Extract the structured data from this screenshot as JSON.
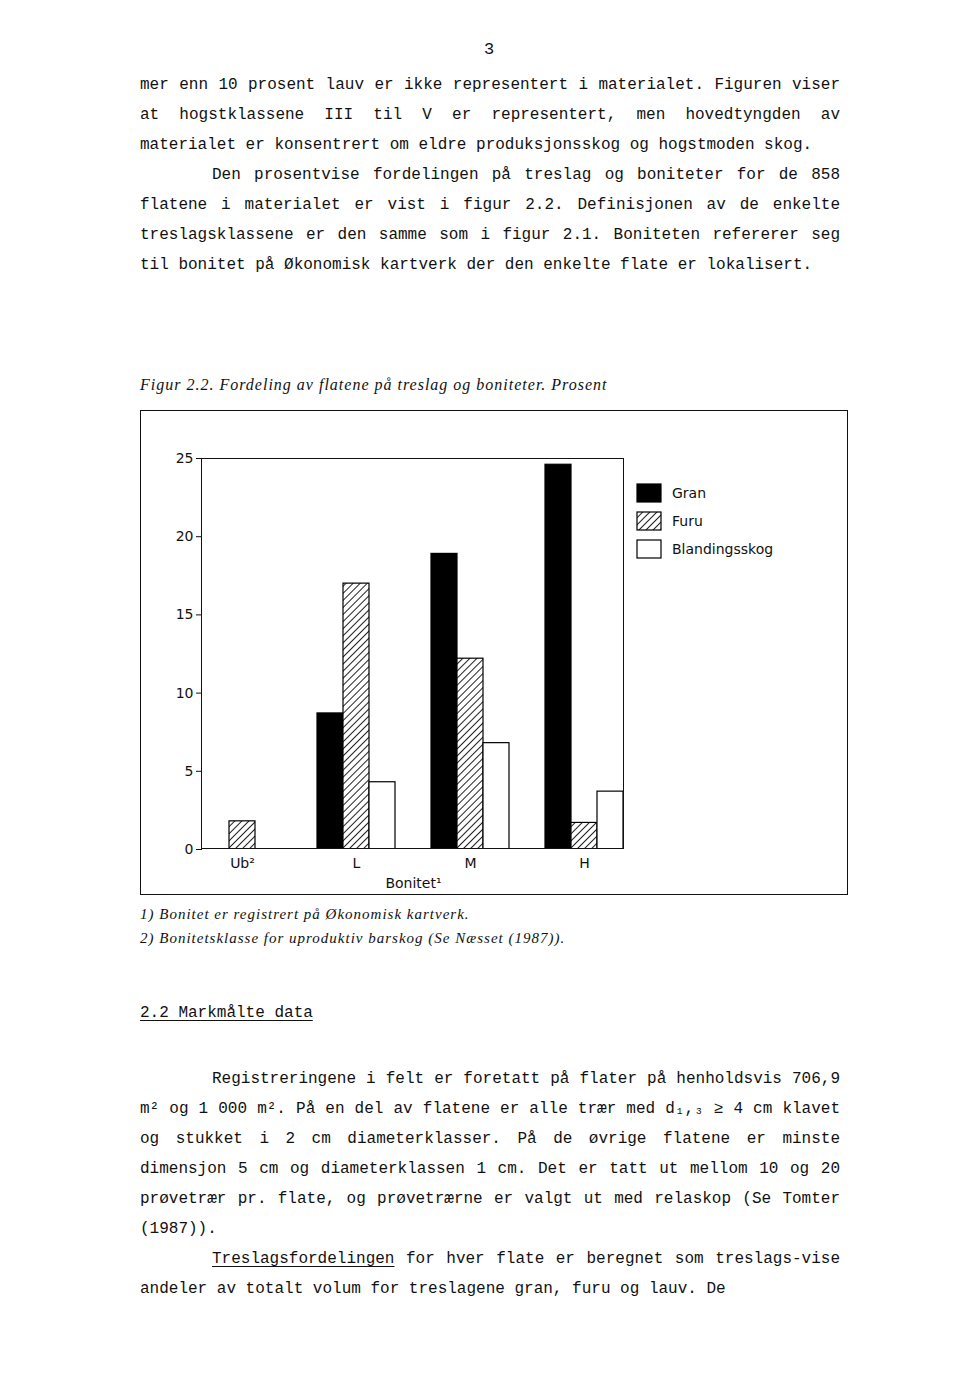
{
  "page_number": "3",
  "paragraphs_top": [
    "mer enn 10 prosent lauv er ikke representert i materialet. Figuren viser at hogstklassene III til V er representert, men hovedtyngden av materialet er konsentrert om eldre produksjonsskog og hogstmoden skog.",
    "Den prosentvise fordelingen på treslag og boniteter for de 858 flatene i materialet er vist i figur 2.2. Definisjonen av de enkelte treslagsklassene er den samme som i figur 2.1. Boniteten refererer seg til bonitet på Økonomisk kartverk der den enkelte flate er lokalisert."
  ],
  "figure_caption": "Figur 2.2. Fordeling av flatene på treslag og boniteter. Prosent",
  "chart_data": {
    "type": "bar",
    "xlabel": "Bonitet¹",
    "categories": [
      "Ub²",
      "L",
      "M",
      "H"
    ],
    "series": [
      {
        "name": "Gran",
        "color": "#000000",
        "values": [
          0,
          8.7,
          18.9,
          24.6
        ]
      },
      {
        "name": "Furu",
        "color": "#222222",
        "values": [
          1.8,
          17.0,
          12.2,
          1.7
        ]
      },
      {
        "name": "Blandingsskog",
        "color": "#ffffff",
        "values": [
          0,
          4.3,
          6.8,
          3.7
        ]
      }
    ],
    "ylim": [
      0,
      25
    ],
    "yticks": [
      0,
      5,
      10,
      15,
      20,
      25
    ],
    "legend": "top-right"
  },
  "footnotes": [
    "1) Bonitet er registrert på Økonomisk kartverk.",
    "2) Bonitetsklasse for uproduktiv barskog (Se Næsset (1987))."
  ],
  "section_heading": "2.2 Markmålte data",
  "paragraphs_bottom": [
    "Registreringene i felt er foretatt på flater på henholdsvis 706,9 m² og 1 000 m². På en del av flatene er alle trær med d₁,₃ ≥ 4 cm klavet og stukket i 2 cm diameterklasser. På de øvrige flatene er minste dimensjon 5 cm og diameterklassen 1 cm. Det er tatt ut mellom 10 og 20 prøvetrær pr. flate, og prøvetrærne er valgt ut med relaskop (Se Tomter (1987))."
  ],
  "last_paragraph": {
    "underlined": "Treslagsfordelingen",
    "text": " for hver flate er beregnet som treslags-vise andeler av totalt volum for treslagene gran, furu og lauv. De"
  }
}
